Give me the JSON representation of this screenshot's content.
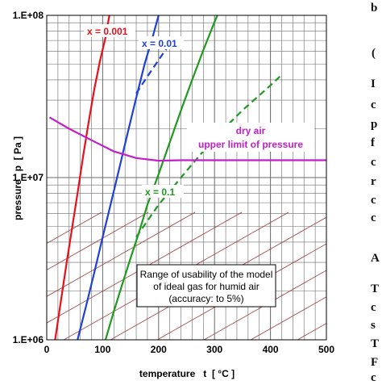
{
  "chart_data": {
    "type": "line",
    "xlabel": "temperature   t  [ °C ]",
    "ylabel": "pressure   p  [ Pa ]",
    "xlim": [
      0,
      500
    ],
    "ylim": [
      1000000,
      100000000
    ],
    "yscale": "log",
    "grid": true,
    "x_ticks": [
      0,
      100,
      200,
      300,
      400,
      500
    ],
    "x_tick_labels": [
      "0",
      "100",
      "200",
      "300",
      "400",
      "500"
    ],
    "y_tick_labels": [
      "1.E+08",
      "1.E+07",
      "1.E+06"
    ],
    "y_ticks": [
      100000000,
      10000000,
      1000000
    ],
    "series": [
      {
        "name": "x = 0.001",
        "color": "#e8101a",
        "style": "solid",
        "points": [
          [
            15,
            1000000
          ],
          [
            25,
            1700000
          ],
          [
            35,
            2900000
          ],
          [
            45,
            4800000
          ],
          [
            55,
            8000000
          ],
          [
            65,
            13500000
          ],
          [
            75,
            22000000
          ],
          [
            85,
            35000000
          ],
          [
            95,
            52000000
          ],
          [
            105,
            73000000
          ],
          [
            112,
            100000000
          ]
        ]
      },
      {
        "name": "x = 0.01",
        "color": "#1e3fd8",
        "style": "solid",
        "points": [
          [
            55,
            1000000
          ],
          [
            70,
            1600000
          ],
          [
            85,
            2600000
          ],
          [
            100,
            4300000
          ],
          [
            115,
            7000000
          ],
          [
            130,
            11500000
          ],
          [
            145,
            19000000
          ],
          [
            160,
            31000000
          ],
          [
            175,
            50000000
          ],
          [
            190,
            75000000
          ],
          [
            200,
            100000000
          ]
        ]
      },
      {
        "name": "x = 0.01 (dashed)",
        "color": "#1e3fd8",
        "style": "dashed",
        "points": [
          [
            160,
            33000000
          ],
          [
            180,
            42000000
          ],
          [
            200,
            53000000
          ],
          [
            215,
            63000000
          ]
        ]
      },
      {
        "name": "x = 0.1",
        "color": "#1f9a1f",
        "style": "solid",
        "points": [
          [
            105,
            1000000
          ],
          [
            120,
            1500000
          ],
          [
            135,
            2200000
          ],
          [
            150,
            3200000
          ],
          [
            165,
            4600000
          ],
          [
            180,
            6800000
          ],
          [
            200,
            10500000
          ],
          [
            220,
            16500000
          ],
          [
            240,
            26000000
          ],
          [
            260,
            40000000
          ],
          [
            280,
            61000000
          ],
          [
            300,
            91000000
          ],
          [
            305,
            100000000
          ]
        ]
      },
      {
        "name": "x = 0.1 (dashed)",
        "color": "#1f9a1f",
        "style": "dashed",
        "points": [
          [
            160,
            4300000
          ],
          [
            200,
            6800000
          ],
          [
            250,
            11000000
          ],
          [
            300,
            17500000
          ],
          [
            350,
            26000000
          ],
          [
            400,
            37000000
          ],
          [
            420,
            43000000
          ]
        ]
      },
      {
        "name": "dry air upper limit of pressure",
        "color": "#c21ec9",
        "style": "solid",
        "points": [
          [
            5,
            23500000
          ],
          [
            40,
            20000000
          ],
          [
            80,
            17000000
          ],
          [
            120,
            14500000
          ],
          [
            160,
            13200000
          ],
          [
            200,
            12700000
          ],
          [
            240,
            12800000
          ],
          [
            300,
            12800000
          ],
          [
            400,
            12800000
          ],
          [
            500,
            12800000
          ]
        ]
      }
    ],
    "annotations": {
      "x_001": "x = 0.001",
      "x_01": "x = 0.01",
      "x_1": "x = 0.1",
      "dry_air_line1": "dry air",
      "dry_air_line2": "upper limit of pressure",
      "usability_line1": "Range of usability of the model",
      "usability_line2": "of ideal gas for humid air",
      "usability_line3": "(accuracy: to 5%)"
    },
    "colors": {
      "grid": "#5a5a5a",
      "diagonal_lines": "#9c3c3c",
      "axis": "#000000"
    }
  },
  "page_fragments": [
    "b",
    "(",
    "I",
    "c",
    "p",
    "f",
    "c",
    "r",
    "c",
    "c",
    "A",
    "T",
    "c",
    "s",
    "T",
    "F",
    "c"
  ]
}
